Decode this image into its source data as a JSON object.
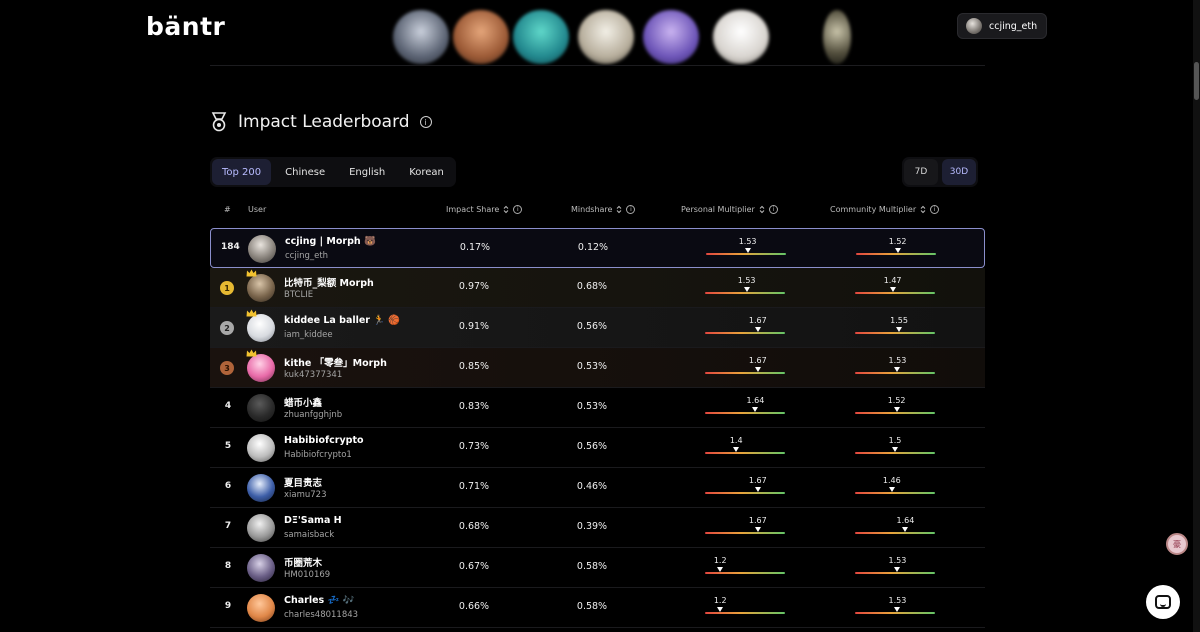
{
  "header": {
    "logo": "bäntr",
    "user_chip": "ccjing_eth"
  },
  "section": {
    "title": "Impact Leaderboard",
    "info": "i"
  },
  "filters": {
    "tabs": [
      "Top 200",
      "Chinese",
      "English",
      "Korean"
    ],
    "active_tab": "Top 200",
    "ranges": [
      "7D",
      "30D"
    ],
    "active_range": "30D"
  },
  "table": {
    "headers": {
      "rank": "#",
      "user": "User",
      "impact_share": "Impact Share",
      "mindshare": "Mindshare",
      "personal_multiplier": "Personal Multiplier",
      "community_multiplier": "Community Multiplier"
    },
    "rows": [
      {
        "rank": "184",
        "name": "ccjing | Morph 🐻",
        "handle": "ccjing_eth",
        "impact": "0.17%",
        "mindshare": "0.12%",
        "personal": "1.53",
        "personal_pos": 0.52,
        "community": "1.52",
        "community_pos": 0.52
      },
      {
        "rank": "1",
        "name": "比特币_梨额 Morph",
        "handle": "BTCLIE",
        "impact": "0.97%",
        "mindshare": "0.68%",
        "personal": "1.53",
        "personal_pos": 0.52,
        "community": "1.47",
        "community_pos": 0.47
      },
      {
        "rank": "2",
        "name": "kiddee La baller 🏃 🏀",
        "handle": "iam_kiddee",
        "impact": "0.91%",
        "mindshare": "0.56%",
        "personal": "1.67",
        "personal_pos": 0.66,
        "community": "1.55",
        "community_pos": 0.55
      },
      {
        "rank": "3",
        "name": "kithe 「零叁」Morph",
        "handle": "kuk47377341",
        "impact": "0.85%",
        "mindshare": "0.53%",
        "personal": "1.67",
        "personal_pos": 0.66,
        "community": "1.53",
        "community_pos": 0.53
      },
      {
        "rank": "4",
        "name": "蜡币小鑫",
        "handle": "zhuanfgghjnb",
        "impact": "0.83%",
        "mindshare": "0.53%",
        "personal": "1.64",
        "personal_pos": 0.63,
        "community": "1.52",
        "community_pos": 0.52
      },
      {
        "rank": "5",
        "name": "Habibiofcrypto",
        "handle": "Habibiofcrypto1",
        "impact": "0.73%",
        "mindshare": "0.56%",
        "personal": "1.4",
        "personal_pos": 0.39,
        "community": "1.5",
        "community_pos": 0.5
      },
      {
        "rank": "6",
        "name": "夏目贵志",
        "handle": "xiamu723",
        "impact": "0.71%",
        "mindshare": "0.46%",
        "personal": "1.67",
        "personal_pos": 0.66,
        "community": "1.46",
        "community_pos": 0.46
      },
      {
        "rank": "7",
        "name": "DΞ'Sama H",
        "handle": "samaisback",
        "impact": "0.68%",
        "mindshare": "0.39%",
        "personal": "1.67",
        "personal_pos": 0.66,
        "community": "1.64",
        "community_pos": 0.63
      },
      {
        "rank": "8",
        "name": "币圈荒木",
        "handle": "HM010169",
        "impact": "0.67%",
        "mindshare": "0.58%",
        "personal": "1.2",
        "personal_pos": 0.19,
        "community": "1.53",
        "community_pos": 0.53
      },
      {
        "rank": "9",
        "name": "Charles 💤 🎶",
        "handle": "charles48011843",
        "impact": "0.66%",
        "mindshare": "0.58%",
        "personal": "1.2",
        "personal_pos": 0.19,
        "community": "1.53",
        "community_pos": 0.53
      }
    ]
  },
  "floating": {
    "badge": "豪"
  },
  "colors": {
    "accent": "#b8bbff",
    "highlight_border": "#8b8fcc",
    "gold": "#e6b932",
    "silver": "#a8a8a8",
    "bronze": "#b0643a"
  }
}
